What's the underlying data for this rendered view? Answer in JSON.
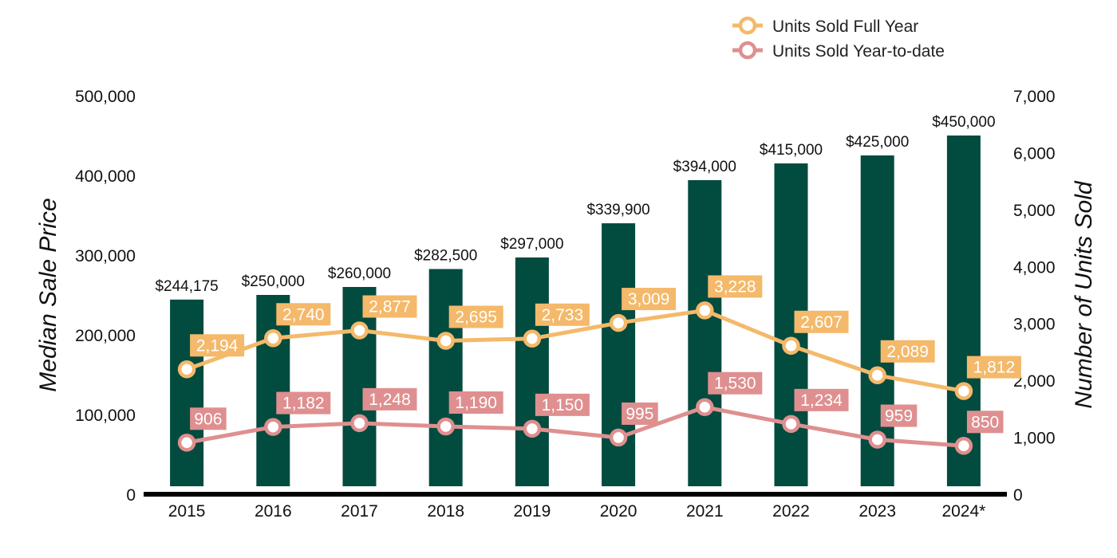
{
  "chart_data": {
    "type": "bar",
    "categories": [
      "2015",
      "2016",
      "2017",
      "2018",
      "2019",
      "2020",
      "2021",
      "2022",
      "2023",
      "2024*"
    ],
    "ylabel": "Median Sale Price",
    "y2label": "Number of Units Sold",
    "ylim": [
      0,
      500000
    ],
    "y2lim": [
      0,
      7000
    ],
    "yticks": [
      "0",
      "100,000",
      "200,000",
      "300,000",
      "400,000",
      "500,000"
    ],
    "y2ticks": [
      "0",
      "1,000",
      "2,000",
      "3,000",
      "4,000",
      "5,000",
      "6,000",
      "7,000"
    ],
    "grid": false,
    "legend_position": "top-right",
    "bars": {
      "values": [
        244175,
        250000,
        260000,
        282500,
        297000,
        339900,
        394000,
        415000,
        425000,
        450000
      ],
      "labels": [
        "$244,175",
        "$250,000",
        "$260,000",
        "$282,500",
        "$297,000",
        "$339,900",
        "$394,000",
        "$415,000",
        "$425,000",
        "$450,000"
      ],
      "color": "#024b3f"
    },
    "series": [
      {
        "name": "Units Sold Full Year",
        "type": "line",
        "axis": "right",
        "color": "#f4b96a",
        "values": [
          2194,
          2740,
          2877,
          2695,
          2733,
          3009,
          3228,
          2607,
          2089,
          1812
        ],
        "labels": [
          "2,194",
          "2,740",
          "2,877",
          "2,695",
          "2,733",
          "3,009",
          "3,228",
          "2,607",
          "2,089",
          "1,812"
        ]
      },
      {
        "name": "Units Sold Year-to-date",
        "type": "line",
        "axis": "right",
        "color": "#df8f8f",
        "values": [
          906,
          1182,
          1248,
          1190,
          1150,
          995,
          1530,
          1234,
          959,
          850
        ],
        "labels": [
          "906",
          "1,182",
          "1,248",
          "1,190",
          "1,150",
          "995",
          "1,530",
          "1,234",
          "959",
          "850"
        ]
      }
    ]
  }
}
